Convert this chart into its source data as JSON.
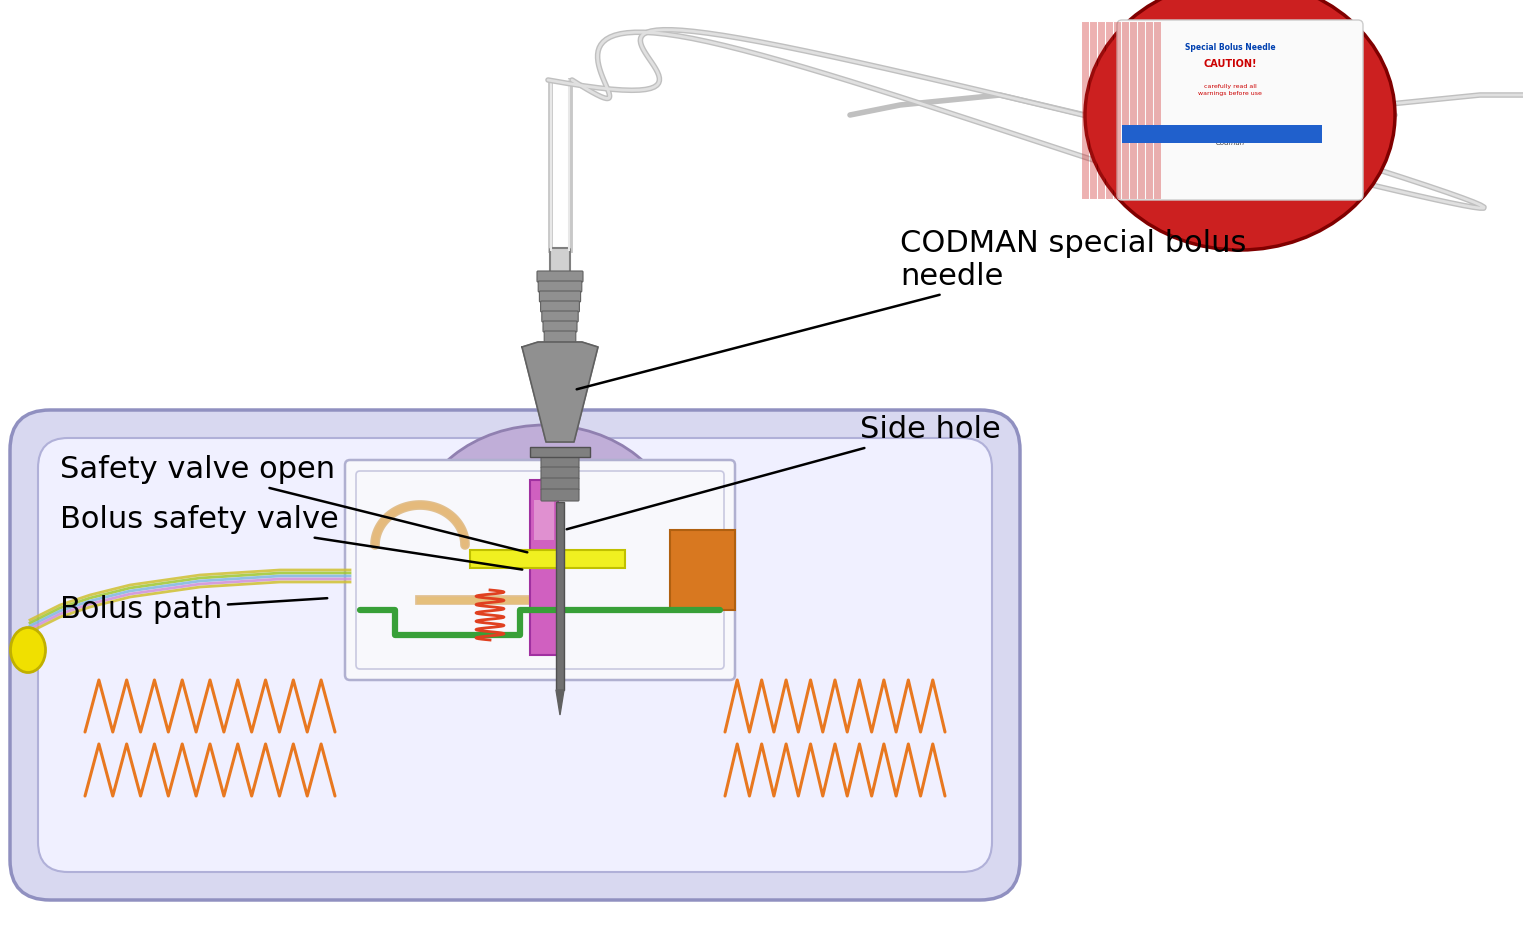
{
  "background_color": "#ffffff",
  "figsize": [
    15.23,
    9.36
  ],
  "dpi": 100,
  "labels": {
    "codman": "CODMAN special bolus\nneedle",
    "side_hole": "Side hole",
    "safety_valve_open": "Safety valve open",
    "bolus_safety_valve": "Bolus safety valve",
    "bolus_path": "Bolus path"
  },
  "colors": {
    "pump_outer": "#d8d8f0",
    "pump_outline": "#9090c0",
    "pump_inner": "#f0f0ff",
    "dome_fill": "#c0aed8",
    "dome_edge": "#9080b0",
    "coil_orange": "#e87820",
    "green_path": "#38a038",
    "purple_valve": "#b050b0",
    "yellow_bar": "#f0f020",
    "orange_rect": "#d87820",
    "spring_red": "#e04020",
    "tube_gray": "#a8a8a8",
    "needle_gray": "#808080",
    "needle_light": "#c0c0c0",
    "needle_dark": "#505050",
    "pkg_red": "#cc2020",
    "pkg_blue": "#2060cc",
    "black": "#000000",
    "white": "#ffffff"
  }
}
